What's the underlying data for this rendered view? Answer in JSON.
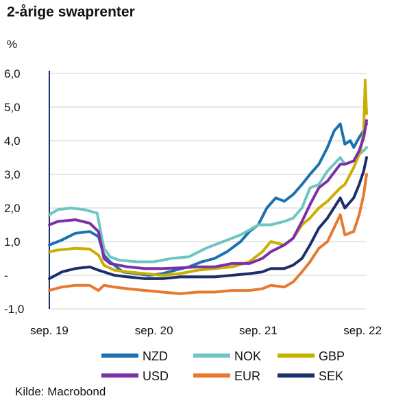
{
  "title": "2-årige swaprenter",
  "source": "Kilde: Macrobond",
  "chart_data": {
    "type": "line",
    "ylabel": "%",
    "ylim": [
      -1.0,
      6.0
    ],
    "xlim": [
      "2019-09-01",
      "2022-09-15"
    ],
    "y_ticks": [
      {
        "value": 6.0,
        "label": "6,0"
      },
      {
        "value": 5.0,
        "label": "5,0"
      },
      {
        "value": 4.0,
        "label": "4,0"
      },
      {
        "value": 3.0,
        "label": "3,0"
      },
      {
        "value": 2.0,
        "label": "2,0"
      },
      {
        "value": 1.0,
        "label": "1,0"
      },
      {
        "value": 0.0,
        "label": "-"
      },
      {
        "value": -1.0,
        "label": "-1,0"
      }
    ],
    "x_ticks": [
      {
        "date": "2019-09-01",
        "label": "sep. 19"
      },
      {
        "date": "2020-09-01",
        "label": "sep. 20"
      },
      {
        "date": "2021-09-01",
        "label": "sep. 21"
      },
      {
        "date": "2022-09-01",
        "label": "sep. 22"
      }
    ],
    "grid": "horizontal",
    "legend_position": "bottom",
    "series": [
      {
        "name": "NZD",
        "color": "#1a72b0",
        "points": [
          [
            "2019-09-01",
            0.9
          ],
          [
            "2019-10-15",
            1.05
          ],
          [
            "2019-12-01",
            1.25
          ],
          [
            "2020-01-20",
            1.3
          ],
          [
            "2020-02-20",
            1.15
          ],
          [
            "2020-03-10",
            0.6
          ],
          [
            "2020-04-01",
            0.4
          ],
          [
            "2020-05-15",
            0.1
          ],
          [
            "2020-07-01",
            0.05
          ],
          [
            "2020-08-15",
            0.0
          ],
          [
            "2020-10-01",
            0.05
          ],
          [
            "2020-11-15",
            0.15
          ],
          [
            "2021-01-01",
            0.25
          ],
          [
            "2021-02-15",
            0.4
          ],
          [
            "2021-04-01",
            0.5
          ],
          [
            "2021-05-15",
            0.7
          ],
          [
            "2021-07-01",
            1.0
          ],
          [
            "2021-08-01",
            1.3
          ],
          [
            "2021-09-01",
            1.5
          ],
          [
            "2021-10-01",
            2.0
          ],
          [
            "2021-11-01",
            2.3
          ],
          [
            "2021-12-01",
            2.2
          ],
          [
            "2022-01-01",
            2.4
          ],
          [
            "2022-02-01",
            2.7
          ],
          [
            "2022-03-01",
            3.0
          ],
          [
            "2022-04-01",
            3.3
          ],
          [
            "2022-05-01",
            3.8
          ],
          [
            "2022-05-25",
            4.3
          ],
          [
            "2022-06-15",
            4.5
          ],
          [
            "2022-07-01",
            3.9
          ],
          [
            "2022-07-20",
            4.0
          ],
          [
            "2022-08-01",
            3.8
          ],
          [
            "2022-08-20",
            4.1
          ],
          [
            "2022-09-05",
            4.3
          ],
          [
            "2022-09-15",
            4.5
          ]
        ]
      },
      {
        "name": "NOK",
        "color": "#6ec6c3",
        "points": [
          [
            "2019-09-01",
            1.8
          ],
          [
            "2019-10-01",
            1.95
          ],
          [
            "2019-11-15",
            2.0
          ],
          [
            "2020-01-01",
            1.95
          ],
          [
            "2020-02-15",
            1.85
          ],
          [
            "2020-03-10",
            0.8
          ],
          [
            "2020-04-01",
            0.55
          ],
          [
            "2020-05-01",
            0.45
          ],
          [
            "2020-07-01",
            0.4
          ],
          [
            "2020-09-01",
            0.4
          ],
          [
            "2020-11-01",
            0.5
          ],
          [
            "2021-01-01",
            0.55
          ],
          [
            "2021-03-01",
            0.8
          ],
          [
            "2021-05-01",
            1.0
          ],
          [
            "2021-07-01",
            1.2
          ],
          [
            "2021-09-01",
            1.5
          ],
          [
            "2021-10-15",
            1.5
          ],
          [
            "2021-12-01",
            1.6
          ],
          [
            "2022-01-01",
            1.7
          ],
          [
            "2022-02-01",
            2.0
          ],
          [
            "2022-03-01",
            2.6
          ],
          [
            "2022-04-01",
            2.7
          ],
          [
            "2022-05-01",
            3.1
          ],
          [
            "2022-06-15",
            3.5
          ],
          [
            "2022-07-01",
            3.3
          ],
          [
            "2022-08-01",
            3.4
          ],
          [
            "2022-08-20",
            3.6
          ],
          [
            "2022-09-05",
            3.7
          ],
          [
            "2022-09-15",
            3.8
          ]
        ]
      },
      {
        "name": "GBP",
        "color": "#c9b000",
        "points": [
          [
            "2019-09-01",
            0.7
          ],
          [
            "2019-10-01",
            0.75
          ],
          [
            "2019-12-01",
            0.8
          ],
          [
            "2020-01-20",
            0.78
          ],
          [
            "2020-02-20",
            0.6
          ],
          [
            "2020-03-10",
            0.3
          ],
          [
            "2020-04-15",
            0.15
          ],
          [
            "2020-06-01",
            0.1
          ],
          [
            "2020-08-01",
            0.05
          ],
          [
            "2020-10-01",
            0.0
          ],
          [
            "2020-12-01",
            0.05
          ],
          [
            "2021-02-01",
            0.15
          ],
          [
            "2021-04-01",
            0.2
          ],
          [
            "2021-06-01",
            0.25
          ],
          [
            "2021-08-01",
            0.4
          ],
          [
            "2021-09-15",
            0.7
          ],
          [
            "2021-10-15",
            1.0
          ],
          [
            "2021-12-01",
            0.9
          ],
          [
            "2022-01-01",
            1.1
          ],
          [
            "2022-02-01",
            1.5
          ],
          [
            "2022-03-01",
            1.7
          ],
          [
            "2022-04-01",
            2.0
          ],
          [
            "2022-05-01",
            2.2
          ],
          [
            "2022-06-15",
            2.6
          ],
          [
            "2022-07-01",
            2.7
          ],
          [
            "2022-08-01",
            3.2
          ],
          [
            "2022-08-25",
            3.7
          ],
          [
            "2022-09-05",
            4.3
          ],
          [
            "2022-09-10",
            5.8
          ],
          [
            "2022-09-15",
            4.8
          ]
        ]
      },
      {
        "name": "USD",
        "color": "#7b2fa8",
        "points": [
          [
            "2019-09-01",
            1.5
          ],
          [
            "2019-10-01",
            1.6
          ],
          [
            "2019-12-01",
            1.65
          ],
          [
            "2020-01-20",
            1.55
          ],
          [
            "2020-02-20",
            1.3
          ],
          [
            "2020-03-10",
            0.5
          ],
          [
            "2020-04-01",
            0.35
          ],
          [
            "2020-06-01",
            0.25
          ],
          [
            "2020-08-01",
            0.2
          ],
          [
            "2020-10-01",
            0.2
          ],
          [
            "2020-12-01",
            0.22
          ],
          [
            "2021-02-01",
            0.25
          ],
          [
            "2021-04-01",
            0.25
          ],
          [
            "2021-06-01",
            0.35
          ],
          [
            "2021-08-01",
            0.35
          ],
          [
            "2021-09-15",
            0.5
          ],
          [
            "2021-10-15",
            0.7
          ],
          [
            "2021-12-01",
            0.9
          ],
          [
            "2022-01-01",
            1.1
          ],
          [
            "2022-02-01",
            1.6
          ],
          [
            "2022-03-01",
            2.1
          ],
          [
            "2022-04-01",
            2.6
          ],
          [
            "2022-05-01",
            2.8
          ],
          [
            "2022-06-15",
            3.3
          ],
          [
            "2022-07-01",
            3.3
          ],
          [
            "2022-08-01",
            3.4
          ],
          [
            "2022-08-20",
            3.7
          ],
          [
            "2022-09-05",
            4.1
          ],
          [
            "2022-09-15",
            4.6
          ]
        ]
      },
      {
        "name": "EUR",
        "color": "#e8782e",
        "points": [
          [
            "2019-09-01",
            -0.45
          ],
          [
            "2019-10-15",
            -0.35
          ],
          [
            "2019-12-01",
            -0.3
          ],
          [
            "2020-01-20",
            -0.3
          ],
          [
            "2020-02-20",
            -0.45
          ],
          [
            "2020-03-10",
            -0.3
          ],
          [
            "2020-04-15",
            -0.35
          ],
          [
            "2020-06-01",
            -0.4
          ],
          [
            "2020-08-01",
            -0.45
          ],
          [
            "2020-10-01",
            -0.5
          ],
          [
            "2020-12-01",
            -0.55
          ],
          [
            "2021-02-01",
            -0.5
          ],
          [
            "2021-04-01",
            -0.5
          ],
          [
            "2021-06-01",
            -0.45
          ],
          [
            "2021-08-01",
            -0.45
          ],
          [
            "2021-09-15",
            -0.4
          ],
          [
            "2021-10-15",
            -0.3
          ],
          [
            "2021-12-01",
            -0.35
          ],
          [
            "2022-01-01",
            -0.2
          ],
          [
            "2022-02-01",
            0.1
          ],
          [
            "2022-03-01",
            0.4
          ],
          [
            "2022-04-01",
            0.8
          ],
          [
            "2022-05-01",
            1.0
          ],
          [
            "2022-06-15",
            1.8
          ],
          [
            "2022-07-01",
            1.2
          ],
          [
            "2022-08-01",
            1.3
          ],
          [
            "2022-08-20",
            1.8
          ],
          [
            "2022-09-05",
            2.4
          ],
          [
            "2022-09-15",
            3.0
          ]
        ]
      },
      {
        "name": "SEK",
        "color": "#1c2e6b",
        "points": [
          [
            "2019-09-01",
            -0.1
          ],
          [
            "2019-10-15",
            0.1
          ],
          [
            "2019-12-01",
            0.2
          ],
          [
            "2020-01-20",
            0.25
          ],
          [
            "2020-02-20",
            0.15
          ],
          [
            "2020-03-10",
            0.1
          ],
          [
            "2020-04-15",
            0.0
          ],
          [
            "2020-06-01",
            -0.05
          ],
          [
            "2020-08-01",
            -0.1
          ],
          [
            "2020-10-01",
            -0.1
          ],
          [
            "2020-12-01",
            -0.05
          ],
          [
            "2021-02-01",
            -0.05
          ],
          [
            "2021-04-01",
            -0.05
          ],
          [
            "2021-06-01",
            0.0
          ],
          [
            "2021-08-01",
            0.05
          ],
          [
            "2021-09-15",
            0.1
          ],
          [
            "2021-10-15",
            0.2
          ],
          [
            "2021-12-01",
            0.2
          ],
          [
            "2022-01-01",
            0.3
          ],
          [
            "2022-02-01",
            0.5
          ],
          [
            "2022-03-01",
            0.9
          ],
          [
            "2022-04-01",
            1.4
          ],
          [
            "2022-05-01",
            1.7
          ],
          [
            "2022-06-15",
            2.3
          ],
          [
            "2022-07-01",
            2.0
          ],
          [
            "2022-08-01",
            2.3
          ],
          [
            "2022-08-20",
            2.7
          ],
          [
            "2022-09-05",
            3.1
          ],
          [
            "2022-09-15",
            3.5
          ]
        ]
      }
    ]
  }
}
